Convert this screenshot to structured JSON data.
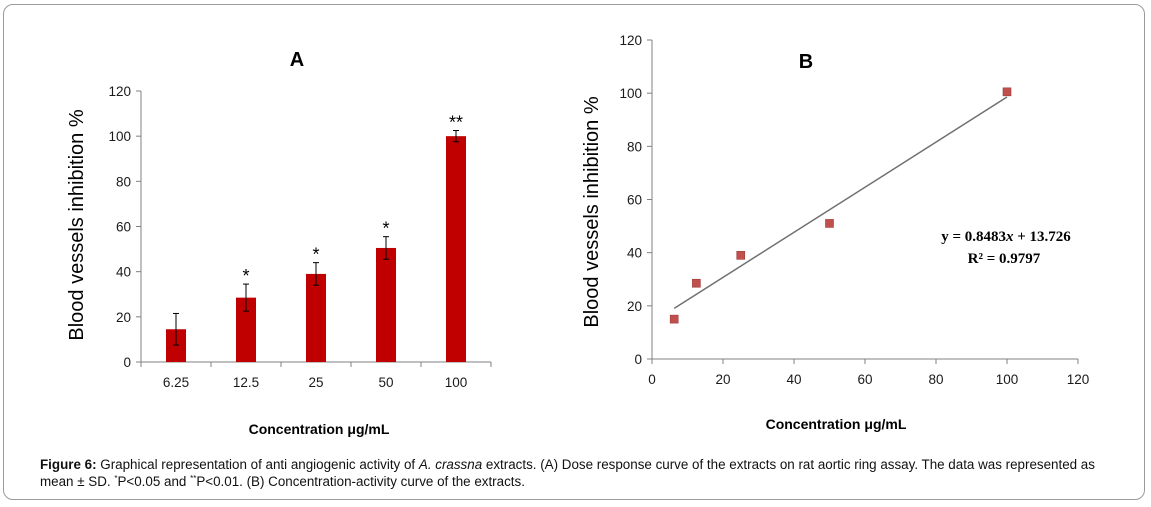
{
  "chart_data": [
    {
      "type": "bar",
      "title": "A",
      "categories": [
        "6.25",
        "12.5",
        "25",
        "50",
        "100"
      ],
      "values": [
        14.5,
        28.5,
        39,
        50.5,
        100
      ],
      "errors": [
        7,
        6,
        5,
        5,
        2.5
      ],
      "significance": [
        "",
        "*",
        "*",
        "*",
        "**"
      ],
      "xlabel": "Concentration μg/mL",
      "ylabel": "Blood vessels inhibition %",
      "ylim": [
        0,
        120
      ],
      "yticks": [
        "0",
        "20",
        "40",
        "60",
        "80",
        "100",
        "120"
      ],
      "bar_color": "#c00000"
    },
    {
      "type": "scatter",
      "title": "B",
      "x": [
        6.25,
        12.5,
        25,
        50,
        100
      ],
      "y": [
        15,
        28.5,
        39,
        51,
        100.5
      ],
      "trendline": {
        "slope": 0.8483,
        "intercept": 13.726,
        "x_range": [
          6.25,
          100
        ]
      },
      "equation": "y = 0.8483x + 13.726",
      "r_squared": "R² = 0.9797",
      "xlabel": "Concentration μg/mL",
      "ylabel": "Blood vessels inhibition %",
      "xlim": [
        0,
        120
      ],
      "ylim": [
        0,
        120
      ],
      "xticks": [
        "0",
        "20",
        "40",
        "60",
        "80",
        "100",
        "120"
      ],
      "yticks": [
        "0",
        "20",
        "40",
        "60",
        "80",
        "100",
        "120"
      ],
      "marker_color": "#c0504d",
      "line_color": "#707070"
    }
  ],
  "caption": {
    "label": "Figure 6:",
    "text_1": "Graphical representation of anti angiogenic activity of",
    "species": "A. crassna",
    "text_2": "extracts. (A) Dose response curve of the extracts on rat aortic ring assay. The data was represented as mean ± SD.",
    "sig1_mark": "*",
    "sig1_text": "P<0.05 and",
    "sig2_mark": "**",
    "sig2_text": "P<0.01. (B) Concentration-activity curve of the extracts."
  }
}
